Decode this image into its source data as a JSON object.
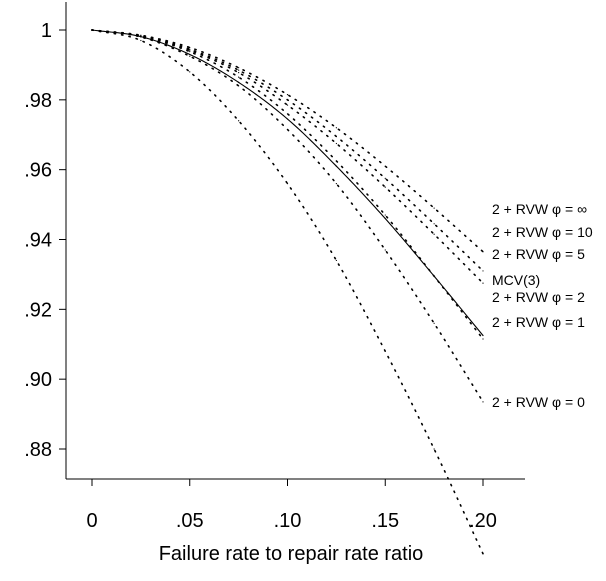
{
  "chart_data": {
    "type": "line",
    "title": "",
    "xlabel": "Failure rate to repair rate ratio",
    "ylabel": "",
    "xlim": [
      0,
      0.2
    ],
    "ylim": [
      0.88,
      1.0
    ],
    "grid": false,
    "legend": "direct labels at right end of each curve",
    "x_ticks": [
      {
        "value": 0,
        "label": "0"
      },
      {
        "value": 0.05,
        "label": ".05"
      },
      {
        "value": 0.1,
        "label": ".10"
      },
      {
        "value": 0.15,
        "label": ".15"
      },
      {
        "value": 0.2,
        "label": ".20"
      }
    ],
    "y_ticks": [
      {
        "value": 1.0,
        "label": "1"
      },
      {
        "value": 0.98,
        "label": ".98"
      },
      {
        "value": 0.96,
        "label": ".96"
      },
      {
        "value": 0.94,
        "label": ".94"
      },
      {
        "value": 0.92,
        "label": ".92"
      },
      {
        "value": 0.9,
        "label": ".90"
      },
      {
        "value": 0.88,
        "label": ".88"
      }
    ],
    "x": [
      0,
      0.025,
      0.05,
      0.075,
      0.1,
      0.125,
      0.15,
      0.175,
      0.2
    ],
    "series": [
      {
        "name": "2 + RVW φ = ∞",
        "style": "dotted",
        "values": [
          1.0,
          0.9985,
          0.995,
          0.9892,
          0.9815,
          0.972,
          0.961,
          0.949,
          0.9365
        ]
      },
      {
        "name": "2 + RVW φ = 10",
        "style": "dotted",
        "values": [
          1.0,
          0.9984,
          0.9945,
          0.9885,
          0.98,
          0.9695,
          0.9575,
          0.9445,
          0.931
        ]
      },
      {
        "name": "2 + RVW φ = 5",
        "style": "dotted",
        "values": [
          1.0,
          0.9983,
          0.9942,
          0.9878,
          0.9785,
          0.9675,
          0.955,
          0.9415,
          0.9275
        ]
      },
      {
        "name": "MCV(3)",
        "style": "solid",
        "values": [
          1.0,
          0.9981,
          0.993,
          0.985,
          0.9745,
          0.961,
          0.946,
          0.9295,
          0.9125
        ]
      },
      {
        "name": "2 + RVW φ = 2",
        "style": "dotted",
        "values": [
          1.0,
          0.9982,
          0.9938,
          0.9865,
          0.976,
          0.9625,
          0.947,
          0.9295,
          0.9115
        ]
      },
      {
        "name": "2 + RVW φ = 1",
        "style": "dotted",
        "values": [
          1.0,
          0.998,
          0.9925,
          0.984,
          0.9715,
          0.956,
          0.937,
          0.916,
          0.8935
        ]
      },
      {
        "name": "2 + RVW φ = 0",
        "style": "dotted",
        "values": [
          1.0,
          0.997,
          0.988,
          0.974,
          0.956,
          0.934,
          0.908,
          0.88,
          0.85
        ]
      }
    ]
  }
}
